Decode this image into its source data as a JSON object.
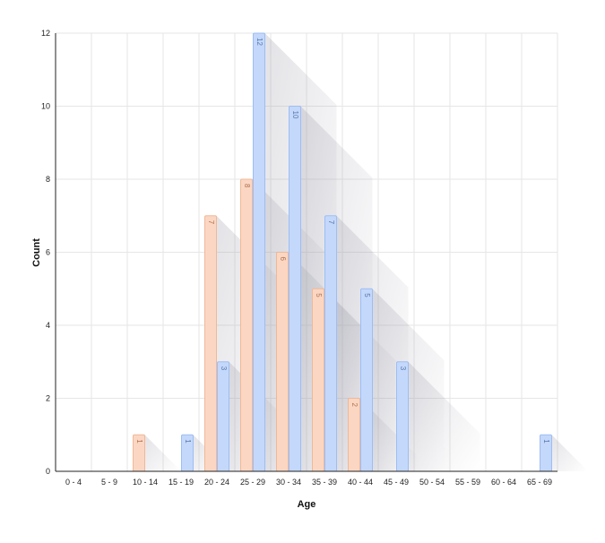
{
  "chart_data": {
    "type": "bar",
    "xlabel": "Age",
    "ylabel": "Count",
    "ylim": [
      0,
      12
    ],
    "y_ticks": [
      0,
      2,
      4,
      6,
      8,
      10,
      12
    ],
    "grid": true,
    "categories": [
      "0 - 4",
      "5 - 9",
      "10 - 14",
      "15 - 19",
      "20 - 24",
      "25 - 29",
      "30 - 34",
      "35 - 39",
      "40 - 44",
      "45 - 49",
      "50 - 54",
      "55 - 59",
      "60 - 64",
      "65 - 69"
    ],
    "series": [
      {
        "values": [
          0,
          0,
          1,
          0,
          7,
          8,
          6,
          5,
          2,
          0,
          0,
          0,
          0,
          0
        ]
      },
      {
        "values": [
          0,
          0,
          0,
          1,
          3,
          12,
          10,
          7,
          5,
          3,
          0,
          0,
          0,
          1
        ]
      }
    ],
    "colors": {
      "series_fills": [
        "#fbd7c3",
        "#c4d8fb"
      ],
      "series_strokes": [
        "#f0b898",
        "#9dbdf3"
      ],
      "series_text": [
        "#b0704f",
        "#5577aa"
      ],
      "grid": "#e6e6e6",
      "axis": "#222222"
    }
  }
}
